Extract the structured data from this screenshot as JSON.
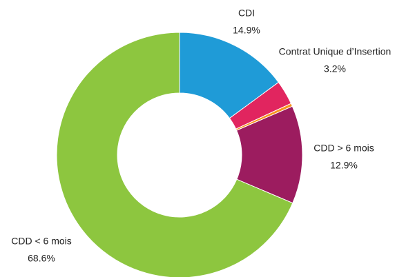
{
  "chart_data": {
    "type": "donut",
    "categories": [
      "CDI",
      "Contrat Unique d’Insertion",
      null,
      "CDD > 6 mois",
      "CDD < 6 mois"
    ],
    "values": [
      14.9,
      3.2,
      0.4,
      12.9,
      68.6
    ],
    "value_labels": [
      "14.9%",
      "3.2%",
      null,
      "12.9%",
      "68.6%"
    ],
    "colors": [
      "#1f9bd7",
      "#e1255f",
      "#f7941d",
      "#9c1c5f",
      "#8dc63f"
    ]
  }
}
